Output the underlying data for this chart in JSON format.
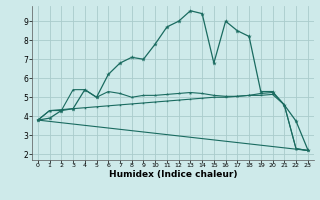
{
  "xlabel": "Humidex (Indice chaleur)",
  "xlim": [
    -0.5,
    23.5
  ],
  "ylim": [
    1.7,
    9.8
  ],
  "yticks": [
    2,
    3,
    4,
    5,
    6,
    7,
    8,
    9
  ],
  "xticks": [
    0,
    1,
    2,
    3,
    4,
    5,
    6,
    7,
    8,
    9,
    10,
    11,
    12,
    13,
    14,
    15,
    16,
    17,
    18,
    19,
    20,
    21,
    22,
    23
  ],
  "bg_color": "#ceeaea",
  "grid_color": "#aacccc",
  "line_color": "#1a6b60",
  "series1": [
    [
      0,
      3.8
    ],
    [
      1,
      3.9
    ],
    [
      2,
      4.3
    ],
    [
      3,
      4.4
    ],
    [
      4,
      5.4
    ],
    [
      5,
      5.0
    ],
    [
      6,
      6.2
    ],
    [
      7,
      6.8
    ],
    [
      8,
      7.1
    ],
    [
      9,
      7.0
    ],
    [
      10,
      7.8
    ],
    [
      11,
      8.7
    ],
    [
      12,
      9.0
    ],
    [
      13,
      9.55
    ],
    [
      14,
      9.4
    ],
    [
      15,
      6.8
    ],
    [
      16,
      9.0
    ],
    [
      17,
      8.5
    ],
    [
      18,
      8.2
    ],
    [
      19,
      5.3
    ],
    [
      20,
      5.3
    ],
    [
      21,
      4.6
    ],
    [
      22,
      3.75
    ],
    [
      23,
      2.25
    ]
  ],
  "series2": [
    [
      0,
      3.8
    ],
    [
      1,
      4.3
    ],
    [
      2,
      4.3
    ],
    [
      3,
      5.4
    ],
    [
      4,
      5.4
    ],
    [
      5,
      5.0
    ],
    [
      6,
      5.3
    ],
    [
      7,
      5.2
    ],
    [
      8,
      5.0
    ],
    [
      9,
      5.1
    ],
    [
      10,
      5.1
    ],
    [
      11,
      5.15
    ],
    [
      12,
      5.2
    ],
    [
      13,
      5.25
    ],
    [
      14,
      5.2
    ],
    [
      15,
      5.1
    ],
    [
      16,
      5.05
    ],
    [
      17,
      5.05
    ],
    [
      18,
      5.1
    ],
    [
      19,
      5.2
    ],
    [
      20,
      5.25
    ],
    [
      21,
      4.6
    ],
    [
      22,
      2.3
    ],
    [
      23,
      2.2
    ]
  ],
  "series3": [
    [
      0,
      3.8
    ],
    [
      1,
      4.3
    ],
    [
      2,
      4.35
    ],
    [
      3,
      4.4
    ],
    [
      4,
      4.45
    ],
    [
      5,
      4.5
    ],
    [
      6,
      4.55
    ],
    [
      7,
      4.6
    ],
    [
      8,
      4.65
    ],
    [
      9,
      4.7
    ],
    [
      10,
      4.75
    ],
    [
      11,
      4.8
    ],
    [
      12,
      4.85
    ],
    [
      13,
      4.9
    ],
    [
      14,
      4.95
    ],
    [
      15,
      5.0
    ],
    [
      16,
      5.0
    ],
    [
      17,
      5.05
    ],
    [
      18,
      5.1
    ],
    [
      19,
      5.1
    ],
    [
      20,
      5.15
    ],
    [
      21,
      4.6
    ],
    [
      22,
      2.3
    ],
    [
      23,
      2.2
    ]
  ],
  "series4": [
    [
      0,
      3.8
    ],
    [
      23,
      2.2
    ]
  ]
}
